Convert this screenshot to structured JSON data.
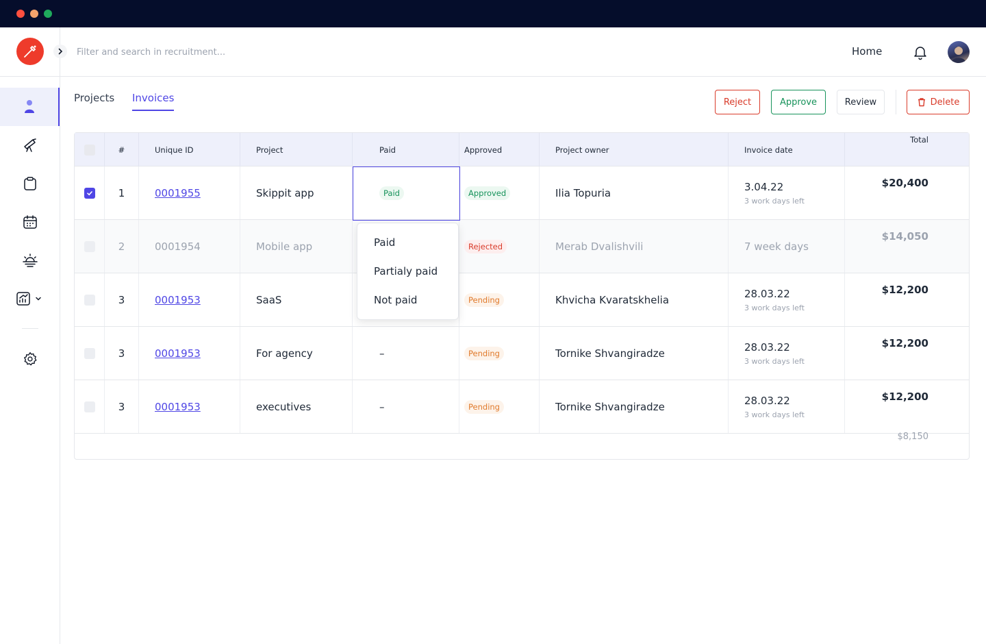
{
  "colors": {
    "titlebar": "#050d2b",
    "accent": "#4f46e5",
    "danger": "#d93b2a",
    "success": "#16925a",
    "warning": "#e07a2c",
    "logo": "#ee3b2b"
  },
  "window_controls": [
    "close-dot",
    "minimize-dot",
    "maximize-dot"
  ],
  "sidebar": {
    "logo_icon": "pen-nib-icon",
    "expand_icon": "chevron-right-icon",
    "items": [
      {
        "name": "user-icon",
        "active": true
      },
      {
        "name": "telescope-icon",
        "active": false
      },
      {
        "name": "clipboard-icon",
        "active": false
      },
      {
        "name": "calendar-icon",
        "active": false
      },
      {
        "name": "sunrise-icon",
        "active": false
      },
      {
        "name": "chart-icon",
        "active": false,
        "has_dropdown": true
      },
      {
        "name": "gear-icon",
        "active": false
      }
    ]
  },
  "header": {
    "search_placeholder": "Filter and search in recruitment...",
    "home_label": "Home",
    "bell_icon": "bell-icon"
  },
  "tabs": [
    {
      "label": "Projects",
      "active": false
    },
    {
      "label": "Invoices",
      "active": true
    }
  ],
  "actions": {
    "reject": "Reject",
    "approve": "Approve",
    "review": "Review",
    "delete": "Delete"
  },
  "table": {
    "columns": {
      "number": "#",
      "unique_id": "Unique ID",
      "project": "Project",
      "paid": "Paid",
      "approved": "Approved",
      "owner": "Project owner",
      "date": "Invoice date",
      "total": "Total"
    },
    "rows": [
      {
        "checked": true,
        "num": "1",
        "id": "0001955",
        "project": "Skippit app",
        "paid": "Paid",
        "approved": "Approved",
        "owner": "Ilia Topuria",
        "date": "3.04.22",
        "date_sub": "3 work days left",
        "total": "$20,400"
      },
      {
        "checked": false,
        "num": "2",
        "id": "0001954",
        "project": "Mobile app",
        "paid": "",
        "approved": "Rejected",
        "owner": "Merab Dvalishvili",
        "date": "7 week days",
        "date_sub": "",
        "total": "$14,050"
      },
      {
        "checked": false,
        "num": "3",
        "id": "0001953",
        "project": "SaaS",
        "paid": "",
        "approved": "Pending",
        "owner": "Khvicha Kvaratskhelia",
        "date": "28.03.22",
        "date_sub": "3 work days left",
        "total": "$12,200"
      },
      {
        "checked": false,
        "num": "3",
        "id": "0001953",
        "project": "For agency",
        "paid": "–",
        "approved": "Pending",
        "owner": "Tornike Shvangiradze",
        "date": "28.03.22",
        "date_sub": "3 work days left",
        "total": "$12,200"
      },
      {
        "checked": false,
        "num": "3",
        "id": "0001953",
        "project": "executives",
        "paid": "–",
        "approved": "Pending",
        "owner": "Tornike Shvangiradze",
        "date": "28.03.22",
        "date_sub": "3 work days left",
        "total": "$12,200"
      }
    ],
    "footer_total": "$8,150"
  },
  "paid_dropdown": {
    "options": [
      "Paid",
      "Partialy paid",
      "Not paid"
    ]
  }
}
